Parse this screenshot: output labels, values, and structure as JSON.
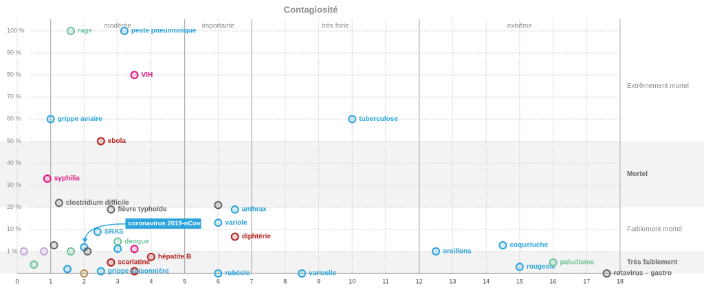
{
  "chart_data": {
    "type": "scatter",
    "title": "Contagiosité",
    "xlim": [
      0,
      18
    ],
    "xticks": [
      0,
      1,
      2,
      3,
      4,
      5,
      6,
      7,
      8,
      9,
      10,
      11,
      12,
      13,
      14,
      15,
      16,
      17,
      18
    ],
    "ylim": [
      0,
      100
    ],
    "yticks": [
      {
        "value": 1,
        "label": "1 %"
      },
      {
        "value": 10,
        "label": "10 %"
      },
      {
        "value": 20,
        "label": "20 %"
      },
      {
        "value": 30,
        "label": "30 %"
      },
      {
        "value": 40,
        "label": "40 %"
      },
      {
        "value": 50,
        "label": "50 %"
      },
      {
        "value": 60,
        "label": "60 %"
      },
      {
        "value": 70,
        "label": "70 %"
      },
      {
        "value": 80,
        "label": "80 %"
      },
      {
        "value": 90,
        "label": "90 %"
      },
      {
        "value": 100,
        "label": "100 %"
      }
    ],
    "grid": true,
    "contagion_zones": [
      {
        "label": "modérée",
        "from": 1,
        "to": 5
      },
      {
        "label": "importante",
        "from": 5,
        "to": 7
      },
      {
        "label": "très forte",
        "from": 7,
        "to": 12
      },
      {
        "label": "extrême",
        "from": 12,
        "to": 18
      }
    ],
    "mortality_zones": [
      {
        "label": "Extrêmement mortel",
        "from": 50,
        "to": 100,
        "shaded": false
      },
      {
        "label": "Mortel",
        "from": 20,
        "to": 50,
        "shaded": true
      },
      {
        "label": "Faiblement mortel",
        "from": 1,
        "to": 20,
        "shaded": false
      },
      {
        "label": "Très faiblement",
        "from": 0,
        "to": 1,
        "shaded": true
      }
    ],
    "points": [
      {
        "label": "rage",
        "x": 1.6,
        "y": 100,
        "color": "#6ec49a"
      },
      {
        "label": "peste pneumonique",
        "x": 3.2,
        "y": 100,
        "color": "#2ba4dc"
      },
      {
        "label": "VIH",
        "x": 3.5,
        "y": 80,
        "color": "#e0157f"
      },
      {
        "label": "grippe aviaire",
        "x": 1,
        "y": 60,
        "color": "#2ba4dc"
      },
      {
        "label": "tuberculose",
        "x": 10,
        "y": 60,
        "color": "#2ba4dc"
      },
      {
        "label": "ebola",
        "x": 2.5,
        "y": 50,
        "color": "#b3231f"
      },
      {
        "label": "syphilis",
        "x": 0.9,
        "y": 33,
        "color": "#e0157f"
      },
      {
        "label": "clostridium difficile",
        "x": 1.25,
        "y": 22,
        "color": "#666666"
      },
      {
        "label": "fièvre typhoïde",
        "x": 2.8,
        "y": 19,
        "color": "#666666"
      },
      {
        "x": 6,
        "y": 21,
        "color": "#666666"
      },
      {
        "label": "anthrax",
        "x": 6.5,
        "y": 19,
        "color": "#2ba4dc"
      },
      {
        "label": "variole",
        "x": 6,
        "y": 13,
        "color": "#2ba4dc"
      },
      {
        "label": "diphtérie",
        "x": 6.5,
        "y": 7,
        "color": "#b3231f"
      },
      {
        "label": "SRAS",
        "x": 2.4,
        "y": 9,
        "color": "#2ba4dc"
      },
      {
        "label": "dengue",
        "x": 3,
        "y": 5,
        "color": "#6ec49a"
      },
      {
        "x": 3,
        "y": 2.1,
        "color": "#2ba4dc"
      },
      {
        "x": 3.5,
        "y": 2,
        "color": "#e0157f"
      },
      {
        "label": "coronavirus 2019-nCov",
        "x": 2,
        "y": 2.7,
        "color": "#2ba4dc",
        "callout": true
      },
      {
        "x": 2.1,
        "y": 1,
        "color": "#666666"
      },
      {
        "x": 1.1,
        "y": 3.5,
        "color": "#666666"
      },
      {
        "x": 0.2,
        "y": 1,
        "color": "#c0a8d8"
      },
      {
        "x": 0.8,
        "y": 1,
        "color": "#c0a8d8"
      },
      {
        "x": 1.6,
        "y": 1,
        "color": "#6ec49a"
      },
      {
        "label": "scarlatine",
        "x": 2.8,
        "y": 0.5,
        "color": "#b3231f"
      },
      {
        "label": "hépatite B",
        "x": 4,
        "y": 0.75,
        "color": "#b3231f"
      },
      {
        "x": 3.5,
        "y": 0.1,
        "color": "#b3231f"
      },
      {
        "x": 0.5,
        "y": 0.4,
        "color": "#6ec49a"
      },
      {
        "x": 1.5,
        "y": 0.2,
        "color": "#2ba4dc"
      },
      {
        "x": 2,
        "y": 0,
        "color": "#b8925a"
      },
      {
        "label": "grippe saisonnière",
        "x": 2.5,
        "y": 0.1,
        "color": "#2ba4dc"
      },
      {
        "label": "rubéole",
        "x": 6,
        "y": 0,
        "color": "#2ba4dc"
      },
      {
        "label": "varicelle",
        "x": 8.5,
        "y": 0,
        "color": "#2ba4dc"
      },
      {
        "label": "oreillons",
        "x": 12.5,
        "y": 1,
        "color": "#2ba4dc"
      },
      {
        "label": "coqueluche",
        "x": 14.5,
        "y": 3.5,
        "color": "#2ba4dc"
      },
      {
        "label": "rougeole",
        "x": 15,
        "y": 0.3,
        "color": "#2ba4dc"
      },
      {
        "label": "paludisme",
        "x": 16,
        "y": 0.5,
        "color": "#6ec49a"
      },
      {
        "label": "rotavirus – gastro",
        "x": 17.6,
        "y": 0,
        "color": "#666666"
      }
    ]
  }
}
